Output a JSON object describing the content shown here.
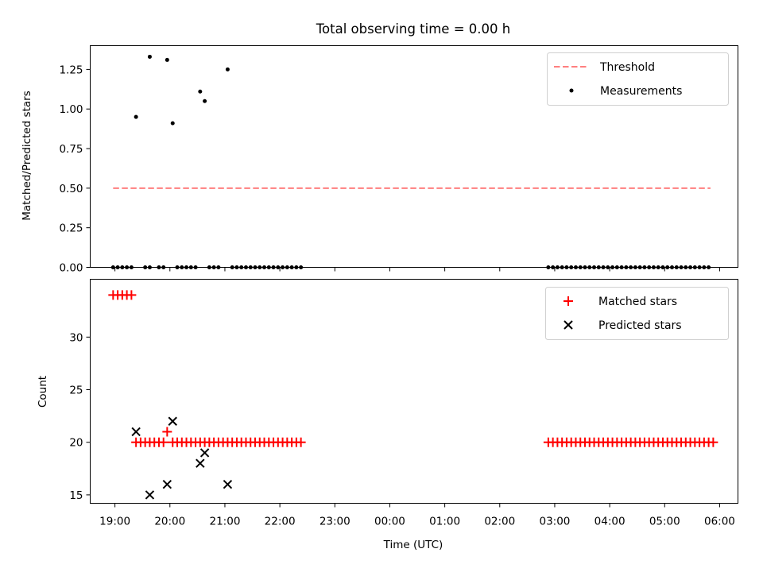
{
  "chart_data": [
    {
      "type": "scatter",
      "title": "Total observing time = 0.00 h",
      "xlabel": "",
      "ylabel": "Matched/Predicted stars",
      "xlim": [
        "18:33",
        "06:20"
      ],
      "ylim": [
        0.0,
        1.4
      ],
      "yticks": [
        "0.00",
        "0.25",
        "0.50",
        "0.75",
        "1.00",
        "1.25"
      ],
      "legend_position": "upper right",
      "series": [
        {
          "name": "Threshold",
          "kind": "dashed-line",
          "color": "#ff7f7f",
          "x": [
            "18:58",
            "05:50"
          ],
          "y": [
            0.5,
            0.5
          ]
        },
        {
          "name": "Measurements",
          "kind": "points",
          "color": "#000000",
          "points": [
            [
              "18:58",
              0
            ],
            [
              "19:03",
              0
            ],
            [
              "19:08",
              0
            ],
            [
              "19:13",
              0
            ],
            [
              "19:18",
              0
            ],
            [
              "19:23",
              0.95
            ],
            [
              "19:33",
              0
            ],
            [
              "19:38",
              0
            ],
            [
              "19:38",
              1.33
            ],
            [
              "19:48",
              0
            ],
            [
              "19:53",
              0
            ],
            [
              "19:57",
              1.31
            ],
            [
              "20:03",
              0.91
            ],
            [
              "20:08",
              0
            ],
            [
              "20:13",
              0
            ],
            [
              "20:18",
              0
            ],
            [
              "20:23",
              0
            ],
            [
              "20:28",
              0
            ],
            [
              "20:33",
              1.11
            ],
            [
              "20:38",
              1.05
            ],
            [
              "20:43",
              0
            ],
            [
              "20:48",
              0
            ],
            [
              "20:53",
              0
            ],
            [
              "21:03",
              1.25
            ],
            [
              "21:08",
              0
            ],
            [
              "21:13",
              0
            ],
            [
              "21:18",
              0
            ],
            [
              "21:23",
              0
            ],
            [
              "21:28",
              0
            ],
            [
              "21:33",
              0
            ],
            [
              "21:38",
              0
            ],
            [
              "21:43",
              0
            ],
            [
              "21:48",
              0
            ],
            [
              "21:53",
              0
            ],
            [
              "21:58",
              0
            ],
            [
              "22:03",
              0
            ],
            [
              "22:08",
              0
            ],
            [
              "22:13",
              0
            ],
            [
              "22:18",
              0
            ],
            [
              "22:23",
              0
            ],
            [
              "02:53",
              0
            ],
            [
              "02:58",
              0
            ],
            [
              "03:03",
              0
            ],
            [
              "03:08",
              0
            ],
            [
              "03:13",
              0
            ],
            [
              "03:18",
              0
            ],
            [
              "03:23",
              0
            ],
            [
              "03:28",
              0
            ],
            [
              "03:33",
              0
            ],
            [
              "03:38",
              0
            ],
            [
              "03:43",
              0
            ],
            [
              "03:48",
              0
            ],
            [
              "03:53",
              0
            ],
            [
              "03:58",
              0
            ],
            [
              "04:03",
              0
            ],
            [
              "04:08",
              0
            ],
            [
              "04:13",
              0
            ],
            [
              "04:18",
              0
            ],
            [
              "04:23",
              0
            ],
            [
              "04:28",
              0
            ],
            [
              "04:33",
              0
            ],
            [
              "04:38",
              0
            ],
            [
              "04:43",
              0
            ],
            [
              "04:48",
              0
            ],
            [
              "04:53",
              0
            ],
            [
              "04:58",
              0
            ],
            [
              "05:03",
              0
            ],
            [
              "05:08",
              0
            ],
            [
              "05:13",
              0
            ],
            [
              "05:18",
              0
            ],
            [
              "05:23",
              0
            ],
            [
              "05:28",
              0
            ],
            [
              "05:33",
              0
            ],
            [
              "05:38",
              0
            ],
            [
              "05:43",
              0
            ],
            [
              "05:48",
              0
            ]
          ]
        }
      ]
    },
    {
      "type": "scatter",
      "title": "",
      "xlabel": "Time (UTC)",
      "ylabel": "Count",
      "xlim": [
        "18:33",
        "06:20"
      ],
      "ylim": [
        14.2,
        35.5
      ],
      "yticks": [
        "15",
        "20",
        "25",
        "30"
      ],
      "xticks": [
        "19:00",
        "20:00",
        "21:00",
        "22:00",
        "23:00",
        "00:00",
        "01:00",
        "02:00",
        "03:00",
        "04:00",
        "05:00",
        "06:00"
      ],
      "legend_position": "upper right",
      "series": [
        {
          "name": "Matched stars",
          "kind": "plus",
          "color": "#ff0000",
          "points": [
            [
              "18:58",
              34
            ],
            [
              "19:03",
              34
            ],
            [
              "19:08",
              34
            ],
            [
              "19:13",
              34
            ],
            [
              "19:18",
              34
            ],
            [
              "19:23",
              20
            ],
            [
              "19:28",
              20
            ],
            [
              "19:33",
              20
            ],
            [
              "19:38",
              20
            ],
            [
              "19:43",
              20
            ],
            [
              "19:48",
              20
            ],
            [
              "19:53",
              20
            ],
            [
              "19:57",
              21
            ],
            [
              "20:03",
              20
            ],
            [
              "20:08",
              20
            ],
            [
              "20:13",
              20
            ],
            [
              "20:18",
              20
            ],
            [
              "20:23",
              20
            ],
            [
              "20:28",
              20
            ],
            [
              "20:33",
              20
            ],
            [
              "20:38",
              20
            ],
            [
              "20:43",
              20
            ],
            [
              "20:48",
              20
            ],
            [
              "20:53",
              20
            ],
            [
              "20:58",
              20
            ],
            [
              "21:03",
              20
            ],
            [
              "21:08",
              20
            ],
            [
              "21:13",
              20
            ],
            [
              "21:18",
              20
            ],
            [
              "21:23",
              20
            ],
            [
              "21:28",
              20
            ],
            [
              "21:33",
              20
            ],
            [
              "21:38",
              20
            ],
            [
              "21:43",
              20
            ],
            [
              "21:48",
              20
            ],
            [
              "21:53",
              20
            ],
            [
              "21:58",
              20
            ],
            [
              "22:03",
              20
            ],
            [
              "22:08",
              20
            ],
            [
              "22:13",
              20
            ],
            [
              "22:18",
              20
            ],
            [
              "22:23",
              20
            ],
            [
              "02:53",
              20
            ],
            [
              "02:58",
              20
            ],
            [
              "03:03",
              20
            ],
            [
              "03:08",
              20
            ],
            [
              "03:13",
              20
            ],
            [
              "03:18",
              20
            ],
            [
              "03:23",
              20
            ],
            [
              "03:28",
              20
            ],
            [
              "03:33",
              20
            ],
            [
              "03:38",
              20
            ],
            [
              "03:43",
              20
            ],
            [
              "03:48",
              20
            ],
            [
              "03:53",
              20
            ],
            [
              "03:58",
              20
            ],
            [
              "04:03",
              20
            ],
            [
              "04:08",
              20
            ],
            [
              "04:13",
              20
            ],
            [
              "04:18",
              20
            ],
            [
              "04:23",
              20
            ],
            [
              "04:28",
              20
            ],
            [
              "04:33",
              20
            ],
            [
              "04:38",
              20
            ],
            [
              "04:43",
              20
            ],
            [
              "04:48",
              20
            ],
            [
              "04:53",
              20
            ],
            [
              "04:58",
              20
            ],
            [
              "05:03",
              20
            ],
            [
              "05:08",
              20
            ],
            [
              "05:13",
              20
            ],
            [
              "05:18",
              20
            ],
            [
              "05:23",
              20
            ],
            [
              "05:28",
              20
            ],
            [
              "05:33",
              20
            ],
            [
              "05:38",
              20
            ],
            [
              "05:43",
              20
            ],
            [
              "05:48",
              20
            ],
            [
              "05:53",
              20
            ]
          ]
        },
        {
          "name": "Predicted stars",
          "kind": "x",
          "color": "#000000",
          "points": [
            [
              "19:23",
              21
            ],
            [
              "19:38",
              15
            ],
            [
              "19:57",
              16
            ],
            [
              "20:03",
              22
            ],
            [
              "20:33",
              18
            ],
            [
              "20:38",
              19
            ],
            [
              "21:03",
              16
            ]
          ]
        }
      ]
    }
  ]
}
